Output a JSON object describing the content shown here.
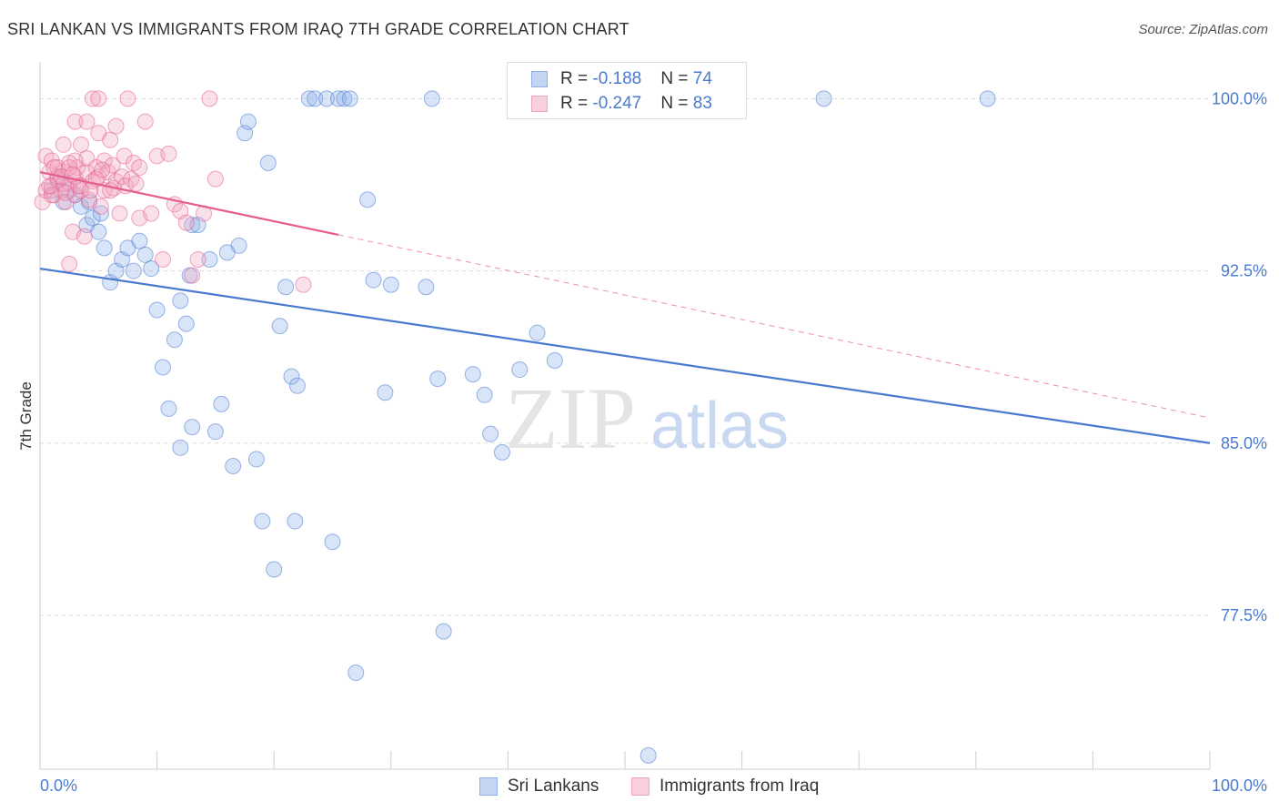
{
  "title": "SRI LANKAN VS IMMIGRANTS FROM IRAQ 7TH GRADE CORRELATION CHART",
  "source": "Source: ZipAtlas.com",
  "watermark": {
    "zip": "ZIP",
    "atlas": "atlas"
  },
  "stats": [
    {
      "r_label": "R = ",
      "r_value": "-0.188",
      "n_label": "N = ",
      "n_value": "74",
      "color": "#8fb1e8"
    },
    {
      "r_label": "R = ",
      "r_value": "-0.247",
      "n_label": "N = ",
      "n_value": "83",
      "color": "#f2a7c0"
    }
  ],
  "legend": [
    {
      "label": "Sri Lankans",
      "color": "#8fb1e8"
    },
    {
      "label": "Immigrants from Iraq",
      "color": "#f2a7c0"
    }
  ],
  "chart_data": {
    "type": "scatter",
    "xlabel": "",
    "ylabel": "7th Grade",
    "xlim": [
      0,
      100
    ],
    "ylim": [
      70.8,
      101.6
    ],
    "x_tick_labels": [
      "0.0%",
      "100.0%"
    ],
    "y_ticks": [
      77.5,
      85.0,
      92.5,
      100.0
    ],
    "y_tick_labels": [
      "77.5%",
      "85.0%",
      "92.5%",
      "100.0%"
    ],
    "grid": true,
    "series": [
      {
        "name": "Sri Lankans",
        "color": "#4a7ad0",
        "fill": "rgba(143,177,232,0.35)",
        "trend": {
          "x": [
            0,
            100
          ],
          "y": [
            92.6,
            85.0
          ],
          "solid_to": 100
        },
        "points": [
          [
            1.0,
            96.0
          ],
          [
            1.5,
            96.5
          ],
          [
            2.0,
            95.5
          ],
          [
            2.5,
            96.0
          ],
          [
            3.0,
            95.8
          ],
          [
            3.5,
            95.3
          ],
          [
            4.0,
            94.5
          ],
          [
            4.5,
            94.8
          ],
          [
            5.0,
            94.2
          ],
          [
            5.2,
            95.0
          ],
          [
            5.5,
            93.5
          ],
          [
            6.0,
            92.0
          ],
          [
            6.5,
            92.5
          ],
          [
            7.0,
            93.0
          ],
          [
            7.5,
            93.5
          ],
          [
            8.0,
            92.5
          ],
          [
            8.5,
            93.8
          ],
          [
            9.0,
            93.2
          ],
          [
            9.5,
            92.6
          ],
          [
            10.0,
            90.8
          ],
          [
            10.5,
            88.3
          ],
          [
            11.0,
            86.5
          ],
          [
            11.5,
            89.5
          ],
          [
            12.0,
            91.2
          ],
          [
            12.5,
            90.2
          ],
          [
            12.8,
            92.3
          ],
          [
            13.0,
            94.5
          ],
          [
            13.5,
            94.5
          ],
          [
            13.0,
            85.7
          ],
          [
            12.0,
            84.8
          ],
          [
            14.5,
            93.0
          ],
          [
            15.0,
            85.5
          ],
          [
            15.5,
            86.7
          ],
          [
            16.0,
            93.3
          ],
          [
            16.5,
            84.0
          ],
          [
            17.0,
            93.6
          ],
          [
            17.5,
            98.5
          ],
          [
            17.8,
            99.0
          ],
          [
            18.5,
            84.3
          ],
          [
            19.0,
            81.6
          ],
          [
            19.5,
            97.2
          ],
          [
            20.0,
            79.5
          ],
          [
            20.5,
            90.1
          ],
          [
            21.0,
            91.8
          ],
          [
            21.5,
            87.9
          ],
          [
            21.8,
            81.6
          ],
          [
            22.0,
            87.5
          ],
          [
            23.0,
            100.0
          ],
          [
            23.5,
            100.0
          ],
          [
            24.5,
            100.0
          ],
          [
            25.0,
            80.7
          ],
          [
            25.5,
            100.0
          ],
          [
            26.0,
            100.0
          ],
          [
            26.5,
            100.0
          ],
          [
            27.0,
            75.0
          ],
          [
            28.0,
            95.6
          ],
          [
            28.5,
            92.1
          ],
          [
            29.5,
            87.2
          ],
          [
            30.0,
            91.9
          ],
          [
            33.0,
            91.8
          ],
          [
            33.5,
            100.0
          ],
          [
            34.0,
            87.8
          ],
          [
            34.5,
            76.8
          ],
          [
            37.0,
            88.0
          ],
          [
            38.0,
            87.1
          ],
          [
            38.5,
            85.4
          ],
          [
            39.5,
            84.6
          ],
          [
            41.0,
            88.2
          ],
          [
            42.5,
            89.8
          ],
          [
            44.0,
            88.6
          ],
          [
            52.0,
            71.4
          ],
          [
            67.0,
            100.0
          ],
          [
            81.0,
            100.0
          ],
          [
            4.2,
            95.5
          ]
        ]
      },
      {
        "name": "Immigrants from Iraq",
        "color": "#e55d8e",
        "fill": "rgba(242,167,192,0.35)",
        "trend": {
          "x": [
            0,
            100
          ],
          "y": [
            96.8,
            86.1
          ],
          "solid_to": 25.5
        },
        "points": [
          [
            0.2,
            95.5
          ],
          [
            0.5,
            96.0
          ],
          [
            0.5,
            97.5
          ],
          [
            0.8,
            96.8
          ],
          [
            1.0,
            96.2
          ],
          [
            1.0,
            97.3
          ],
          [
            1.2,
            95.8
          ],
          [
            1.5,
            96.5
          ],
          [
            1.5,
            97.0
          ],
          [
            1.8,
            96.0
          ],
          [
            2.0,
            96.8
          ],
          [
            2.0,
            98.0
          ],
          [
            2.2,
            95.5
          ],
          [
            2.5,
            96.3
          ],
          [
            2.5,
            97.2
          ],
          [
            2.8,
            94.2
          ],
          [
            3.0,
            96.6
          ],
          [
            3.0,
            95.8
          ],
          [
            3.2,
            97.0
          ],
          [
            3.5,
            96.2
          ],
          [
            3.5,
            98.0
          ],
          [
            3.8,
            94.0
          ],
          [
            4.0,
            96.8
          ],
          [
            4.0,
            97.4
          ],
          [
            4.2,
            95.6
          ],
          [
            4.5,
            96.4
          ],
          [
            4.5,
            100.0
          ],
          [
            4.8,
            97.0
          ],
          [
            5.0,
            96.6
          ],
          [
            5.0,
            98.5
          ],
          [
            5.2,
            95.3
          ],
          [
            5.5,
            96.0
          ],
          [
            5.5,
            97.3
          ],
          [
            5.8,
            96.8
          ],
          [
            6.0,
            98.2
          ],
          [
            6.2,
            97.1
          ],
          [
            6.5,
            96.4
          ],
          [
            6.5,
            98.8
          ],
          [
            6.8,
            95.0
          ],
          [
            7.0,
            96.6
          ],
          [
            7.2,
            97.5
          ],
          [
            7.5,
            100.0
          ],
          [
            7.8,
            96.5
          ],
          [
            8.0,
            97.2
          ],
          [
            8.5,
            94.8
          ],
          [
            8.5,
            97.0
          ],
          [
            9.0,
            99.0
          ],
          [
            9.5,
            95.0
          ],
          [
            10.0,
            97.5
          ],
          [
            10.5,
            93.0
          ],
          [
            11.0,
            97.6
          ],
          [
            11.5,
            95.4
          ],
          [
            12.0,
            95.1
          ],
          [
            12.5,
            94.6
          ],
          [
            13.0,
            92.3
          ],
          [
            13.5,
            93.0
          ],
          [
            14.0,
            95.0
          ],
          [
            14.5,
            100.0
          ],
          [
            15.0,
            96.5
          ],
          [
            1.0,
            95.8
          ],
          [
            1.5,
            96.6
          ],
          [
            2.0,
            96.3
          ],
          [
            2.5,
            97.0
          ],
          [
            3.0,
            97.3
          ],
          [
            3.5,
            96.0
          ],
          [
            0.8,
            96.2
          ],
          [
            1.2,
            97.0
          ],
          [
            1.8,
            96.6
          ],
          [
            2.2,
            95.9
          ],
          [
            2.8,
            96.7
          ],
          [
            3.3,
            96.2
          ],
          [
            4.3,
            96.0
          ],
          [
            4.8,
            96.5
          ],
          [
            5.3,
            96.9
          ],
          [
            6.3,
            96.1
          ],
          [
            7.3,
            96.2
          ],
          [
            8.2,
            96.3
          ],
          [
            3.0,
            99.0
          ],
          [
            5.0,
            100.0
          ],
          [
            4.0,
            99.0
          ],
          [
            6.0,
            96.0
          ],
          [
            2.5,
            92.8
          ],
          [
            22.5,
            91.9
          ]
        ]
      }
    ]
  }
}
